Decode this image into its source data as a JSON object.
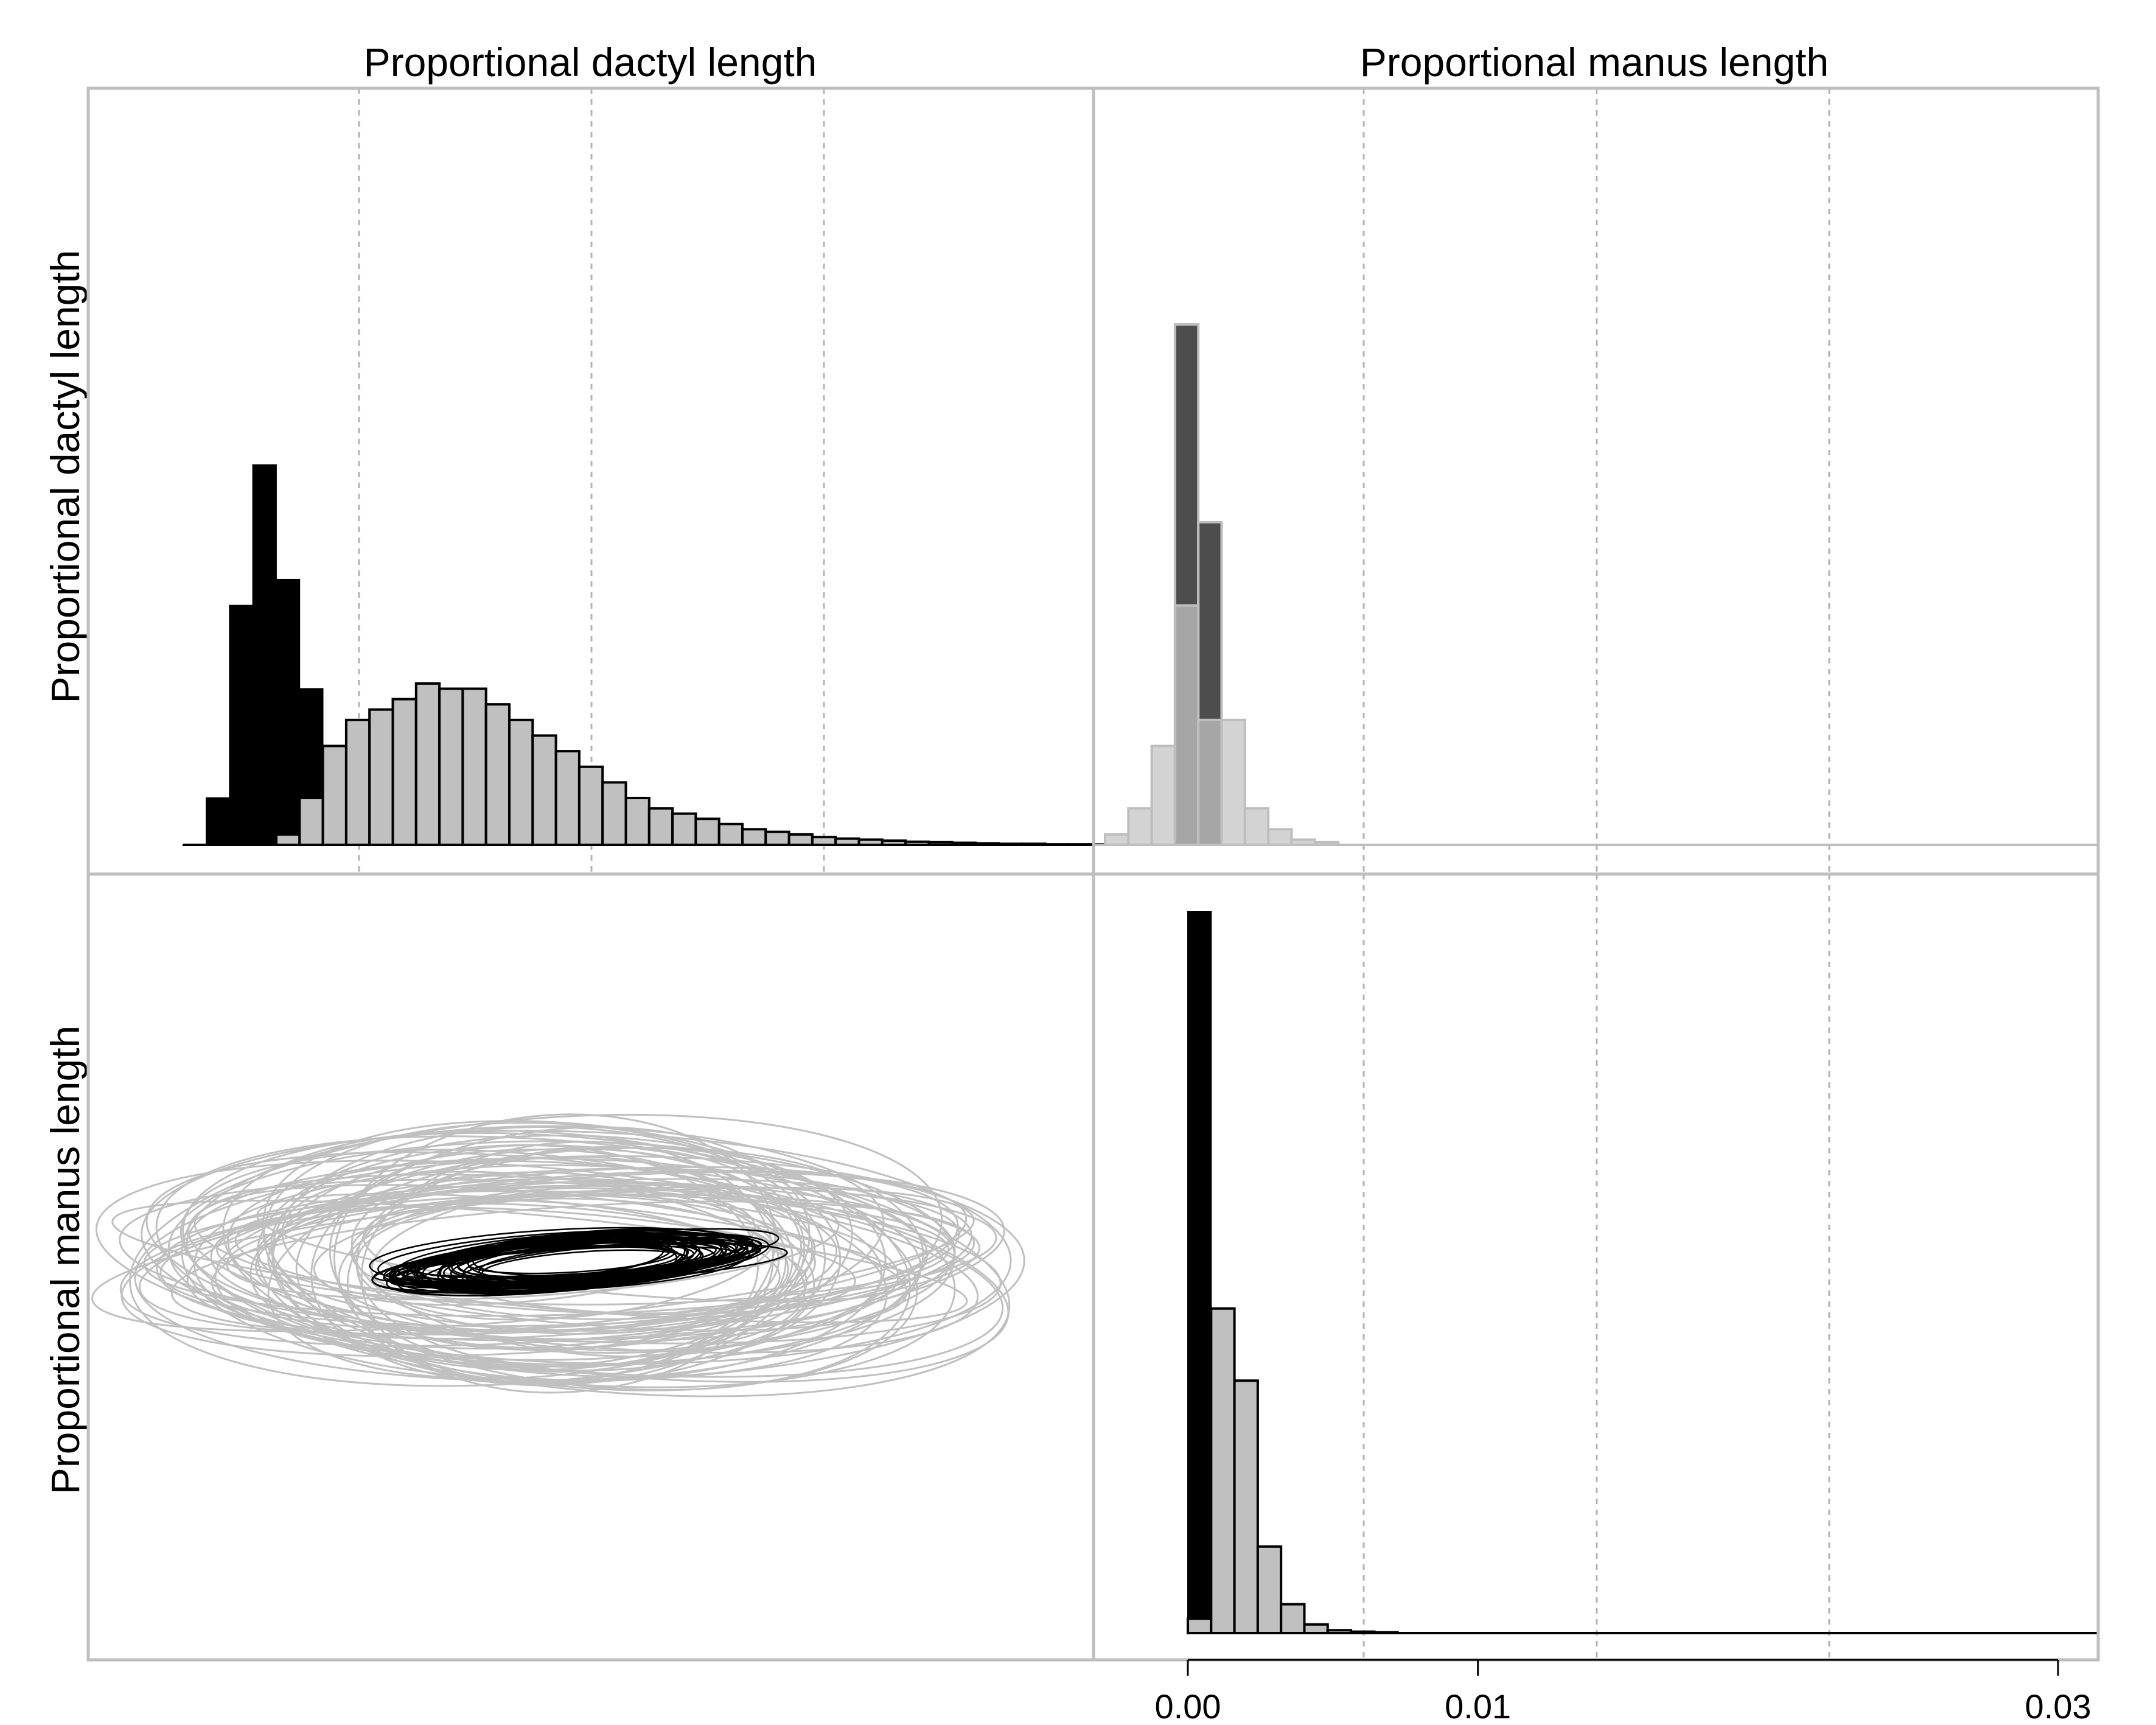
{
  "chart_data": {
    "type": "histogram-matrix",
    "column_titles": [
      "Proportional dactyl length",
      "Proportional manus length"
    ],
    "row_titles": [
      "Proportional dactyl length",
      "Proportional manus length"
    ],
    "grid": true,
    "colors": {
      "prior": "#c0c0c0",
      "posterior": "#000000",
      "overlap_light": "#d3d3d3",
      "overlap_mid": "#a6a6a6",
      "overlap_dark": "#4d4d4d",
      "frame": "#bebebe",
      "gridline": "#b3b3b3"
    },
    "panels": [
      {
        "id": "dactyl-variance",
        "position": "top-left",
        "series": [
          {
            "role": "posterior",
            "heights": [
              0.09,
              0.46,
              0.73,
              0.51,
              0.3,
              0.12
            ]
          },
          {
            "role": "prior",
            "heights": [
              0.02,
              0.09,
              0.19,
              0.24,
              0.26,
              0.28,
              0.31,
              0.3,
              0.3,
              0.27,
              0.24,
              0.21,
              0.18,
              0.15,
              0.12,
              0.09,
              0.07,
              0.06,
              0.05,
              0.04,
              0.03,
              0.025,
              0.02,
              0.015,
              0.012,
              0.01,
              0.008,
              0.006,
              0.005,
              0.004,
              0.003,
              0.002,
              0.002,
              0.001,
              0.001,
              0.001,
              0.001,
              0.001
            ]
          }
        ]
      },
      {
        "id": "manus-variance-dactyl-row",
        "position": "top-right",
        "series": [
          {
            "role": "prior-light",
            "heights": [
              0.02,
              0.07,
              0.19,
              0.46,
              0.46,
              0.24,
              0.07,
              0.03,
              0.01,
              0.005
            ]
          },
          {
            "role": "posterior-dark",
            "bins": [
              3,
              4
            ],
            "heights": [
              1.0,
              0.62
            ]
          },
          {
            "role": "overlap-mid",
            "bins": [
              3,
              4
            ],
            "heights": [
              0.46,
              0.24
            ]
          }
        ]
      },
      {
        "id": "covariance-ellipses",
        "position": "bottom-left",
        "series": [
          {
            "role": "prior",
            "count": 60
          },
          {
            "role": "posterior",
            "count": 45
          }
        ]
      },
      {
        "id": "manus-variance",
        "position": "bottom-right",
        "x_axis": {
          "range": [
            0,
            0.03
          ],
          "ticks": [
            {
              "value": 0.0,
              "label": "0.00"
            },
            {
              "value": 0.01,
              "label": "0.01"
            },
            {
              "value": 0.03,
              "label": "0.03"
            }
          ]
        },
        "series": [
          {
            "role": "posterior",
            "heights": [
              1.0
            ]
          },
          {
            "role": "prior",
            "heights": [
              0.02,
              0.45,
              0.35,
              0.12,
              0.04,
              0.012,
              0.004,
              0.002,
              0.001
            ]
          }
        ]
      }
    ]
  }
}
